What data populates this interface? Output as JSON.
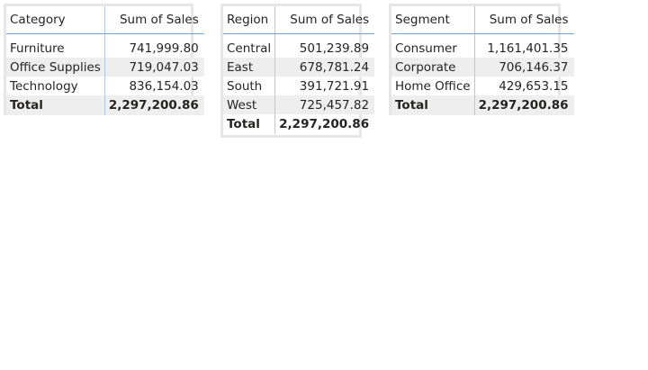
{
  "category_table": {
    "headers": [
      "Category",
      "Sum of Sales"
    ],
    "rows": [
      [
        "Furniture",
        "741,999.80"
      ],
      [
        "Office Supplies",
        "719,047.03"
      ],
      [
        "Technology",
        "836,154.03"
      ]
    ],
    "total": [
      "Total",
      "2,297,200.86"
    ]
  },
  "region_table": {
    "headers": [
      "Region",
      "Sum of Sales"
    ],
    "rows": [
      [
        "Central",
        "501,239.89"
      ],
      [
        "East",
        "678,781.24"
      ],
      [
        "South",
        "391,721.91"
      ],
      [
        "West",
        "725,457.82"
      ]
    ],
    "total": [
      "Total",
      "2,297,200.86"
    ]
  },
  "segment_table": {
    "headers": [
      "Segment",
      "Sum of Sales"
    ],
    "rows": [
      [
        "Consumer",
        "1,161,401.35"
      ],
      [
        "Corporate",
        "706,146.37"
      ],
      [
        "Home Office",
        "429,653.15"
      ]
    ],
    "total": [
      "Total",
      "2,297,200.86"
    ]
  }
}
